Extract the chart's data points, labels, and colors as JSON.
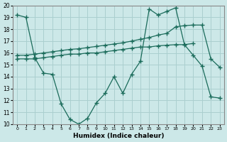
{
  "xlabel": "Humidex (Indice chaleur)",
  "bg_color": "#cce8e8",
  "grid_color": "#aacfcf",
  "line_color": "#1a6b5a",
  "xlim": [
    -0.5,
    23.5
  ],
  "ylim": [
    10,
    20
  ],
  "yticks": [
    10,
    11,
    12,
    13,
    14,
    15,
    16,
    17,
    18,
    19,
    20
  ],
  "xticks": [
    0,
    1,
    2,
    3,
    4,
    5,
    6,
    7,
    8,
    9,
    10,
    11,
    12,
    13,
    14,
    15,
    16,
    17,
    18,
    19,
    20,
    21,
    22,
    23
  ],
  "series1_x": [
    0,
    1,
    2,
    3,
    4,
    5,
    6,
    7,
    8,
    9,
    10,
    11,
    12,
    13,
    14,
    15,
    16,
    17,
    18,
    19,
    20,
    21,
    22,
    23
  ],
  "series1_y": [
    19.2,
    19.0,
    15.6,
    14.3,
    14.2,
    11.7,
    10.4,
    10.0,
    10.5,
    11.8,
    12.6,
    14.0,
    12.6,
    14.2,
    15.3,
    19.7,
    19.2,
    19.5,
    19.8,
    16.7,
    15.8,
    14.9,
    12.3,
    12.2
  ],
  "series2_x": [
    0,
    1,
    2,
    3,
    4,
    5,
    6,
    7,
    8,
    9,
    10,
    11,
    12,
    13,
    14,
    15,
    16,
    17,
    18,
    19,
    20,
    21,
    22,
    23
  ],
  "series2_y": [
    15.8,
    15.8,
    15.9,
    16.0,
    16.1,
    16.2,
    16.3,
    16.35,
    16.45,
    16.55,
    16.65,
    16.75,
    16.85,
    17.0,
    17.15,
    17.3,
    17.5,
    17.65,
    18.2,
    18.3,
    18.35,
    18.35,
    15.5,
    14.8
  ],
  "series3_x": [
    0,
    1,
    2,
    3,
    4,
    5,
    6,
    7,
    8,
    9,
    10,
    11,
    12,
    13,
    14,
    15,
    16,
    17,
    18,
    19,
    20
  ],
  "series3_y": [
    15.5,
    15.5,
    15.5,
    15.6,
    15.7,
    15.8,
    15.9,
    15.9,
    16.0,
    16.0,
    16.1,
    16.2,
    16.3,
    16.4,
    16.5,
    16.5,
    16.6,
    16.65,
    16.7,
    16.7,
    16.8
  ]
}
